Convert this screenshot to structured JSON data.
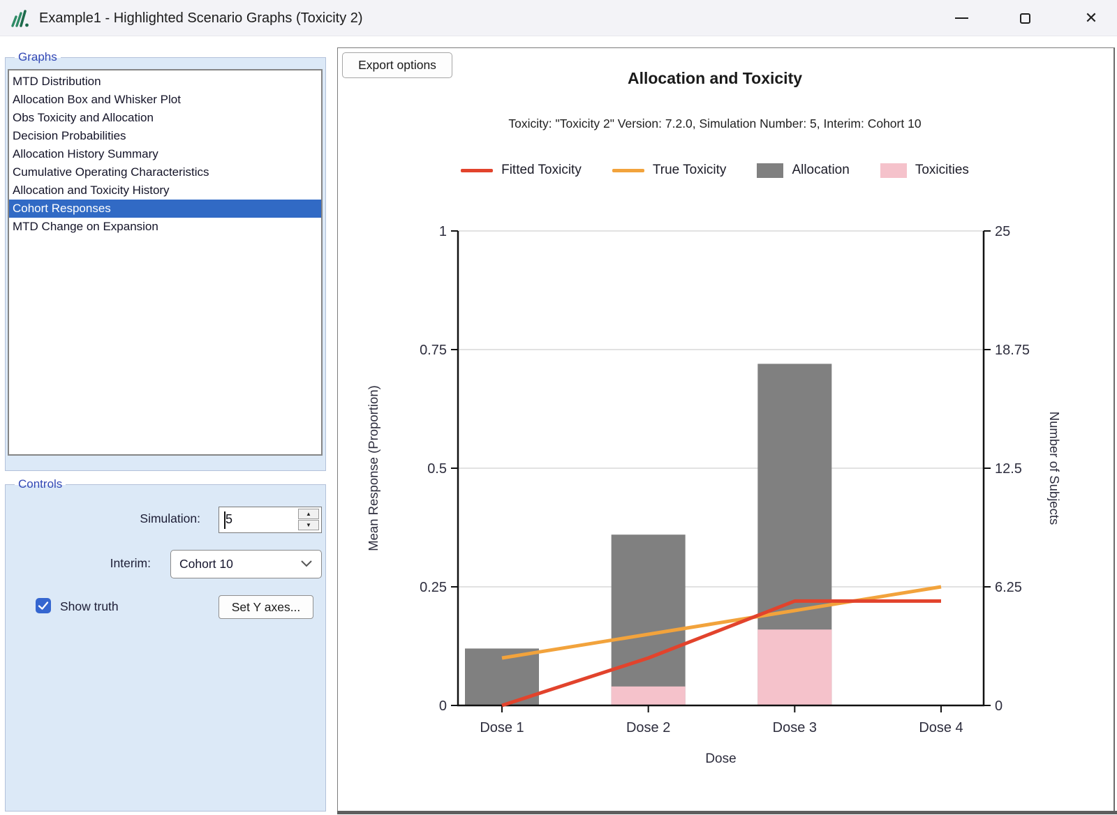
{
  "window": {
    "title": "Example1 - Highlighted Scenario Graphs (Toxicity 2)",
    "controls": [
      "minimize",
      "maximize",
      "close"
    ]
  },
  "graphs_panel": {
    "label": "Graphs",
    "items": [
      "MTD Distribution",
      "Allocation Box and Whisker Plot",
      "Obs Toxicity and Allocation",
      "Decision Probabilities",
      "Allocation History Summary",
      "Cumulative Operating Characteristics",
      "Allocation and Toxicity History",
      "Cohort Responses",
      "MTD Change on Expansion"
    ],
    "selected_index": 7,
    "selection_color": "#316AC5"
  },
  "controls_panel": {
    "label": "Controls",
    "simulation_label": "Simulation:",
    "simulation_value": "5",
    "interim_label": "Interim:",
    "interim_value": "Cohort 10",
    "show_truth_label": "Show truth",
    "show_truth_checked": true,
    "set_y_axes_label": "Set Y axes...",
    "checkbox_color": "#3566D0",
    "panel_color": "#DCE9F7"
  },
  "main_panel": {
    "export_button_label": "Export options"
  },
  "chart_data": {
    "type": "bar+line",
    "title": "Allocation and Toxicity",
    "subtitle": "Toxicity: \"Toxicity 2\" Version: 7.2.0, Simulation Number: 5, Interim: Cohort 10",
    "categories": [
      "Dose 1",
      "Dose 2",
      "Dose 3",
      "Dose 4"
    ],
    "xlabel": "Dose",
    "left_axis": {
      "label": "Mean Response (Proportion)",
      "ticks": [
        "0",
        "0.25",
        "0.5",
        "0.75",
        "1"
      ],
      "range": [
        0,
        1
      ]
    },
    "right_axis": {
      "label": "Number of Subjects",
      "ticks": [
        "0",
        "6.25",
        "12.5",
        "18.75",
        "25"
      ],
      "range": [
        0,
        25
      ]
    },
    "grid": true,
    "legend_position": "top",
    "series": [
      {
        "name": "Allocation",
        "type": "bar",
        "axis": "right",
        "values": [
          3,
          9,
          18,
          0
        ],
        "color": "#808080"
      },
      {
        "name": "Toxicities",
        "type": "bar",
        "axis": "right",
        "values": [
          0,
          1,
          4,
          0
        ],
        "color": "#F5C2CB"
      },
      {
        "name": "Fitted Toxicity",
        "type": "line",
        "axis": "left",
        "values": [
          0.0,
          0.1,
          0.22,
          0.22
        ],
        "color": "#E2432C"
      },
      {
        "name": "True Toxicity",
        "type": "line",
        "axis": "left",
        "values": [
          0.1,
          0.15,
          0.2,
          0.25
        ],
        "color": "#F2A33C"
      }
    ],
    "legend": [
      {
        "label": "Fitted Toxicity",
        "swatch": "line",
        "color": "#E2432C"
      },
      {
        "label": "True Toxicity",
        "swatch": "line",
        "color": "#F2A33C"
      },
      {
        "label": "Allocation",
        "swatch": "box",
        "color": "#808080"
      },
      {
        "label": "Toxicities",
        "swatch": "box",
        "color": "#F5C2CB"
      }
    ]
  }
}
